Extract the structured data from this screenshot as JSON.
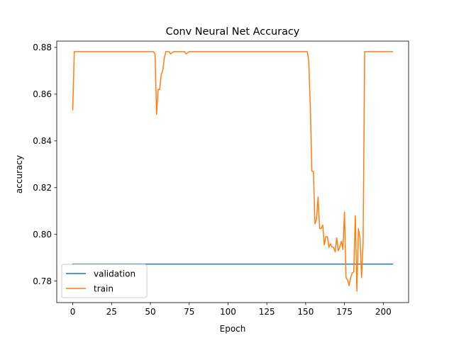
{
  "chart_data": {
    "type": "line",
    "title": "Conv Neural Net Accuracy",
    "xlabel": "Epoch",
    "ylabel": "accuracy",
    "xlim": [
      -10.3,
      216.3
    ],
    "ylim": [
      0.7708,
      0.8827
    ],
    "xticks": [
      0,
      25,
      50,
      75,
      100,
      125,
      150,
      175,
      200
    ],
    "yticks": [
      0.78,
      0.8,
      0.82,
      0.84,
      0.86,
      0.88
    ],
    "ytick_labels": [
      "0.78",
      "0.80",
      "0.82",
      "0.84",
      "0.86",
      "0.88"
    ],
    "grid": false,
    "legend_position": "lower-left",
    "series": [
      {
        "name": "validation",
        "color": "#1f77b4",
        "x": [
          0,
          206
        ],
        "y": [
          0.7873,
          0.7873
        ]
      },
      {
        "name": "train",
        "color": "#ff7f0e",
        "x": [
          0,
          1,
          2,
          5,
          10,
          20,
          30,
          40,
          50,
          52,
          53,
          54,
          55,
          56,
          57,
          58,
          59,
          60,
          61,
          62,
          63,
          65,
          70,
          72,
          73,
          75,
          80,
          90,
          100,
          110,
          120,
          130,
          140,
          150,
          151,
          152,
          153,
          154,
          155,
          156,
          157,
          158,
          159,
          160,
          161,
          162,
          163,
          164,
          165,
          166,
          167,
          168,
          169,
          170,
          171,
          172,
          173,
          174,
          175,
          176,
          177,
          178,
          179,
          180,
          181,
          182,
          183,
          184,
          185,
          186,
          187,
          188,
          189,
          190,
          191,
          195,
          200,
          206
        ],
        "y": [
          0.8533,
          0.8782,
          0.8782,
          0.8782,
          0.8782,
          0.8782,
          0.8782,
          0.8782,
          0.8782,
          0.8782,
          0.8772,
          0.8513,
          0.862,
          0.862,
          0.8685,
          0.8702,
          0.8755,
          0.8782,
          0.8782,
          0.8782,
          0.8772,
          0.8782,
          0.8782,
          0.8782,
          0.8772,
          0.8782,
          0.8782,
          0.8782,
          0.8782,
          0.8782,
          0.8782,
          0.8782,
          0.8782,
          0.8782,
          0.8782,
          0.8742,
          0.855,
          0.827,
          0.827,
          0.8045,
          0.8065,
          0.816,
          0.8025,
          0.8025,
          0.804,
          0.7955,
          0.799,
          0.799,
          0.7945,
          0.796,
          0.7945,
          0.7945,
          0.7925,
          0.7985,
          0.793,
          0.7945,
          0.797,
          0.7935,
          0.8095,
          0.7815,
          0.7805,
          0.778,
          0.7815,
          0.7835,
          0.784,
          0.808,
          0.7757,
          0.8025,
          0.7985,
          0.7815,
          0.7965,
          0.8782,
          0.8782,
          0.8782,
          0.8782,
          0.8782,
          0.8782,
          0.8782
        ]
      }
    ]
  }
}
